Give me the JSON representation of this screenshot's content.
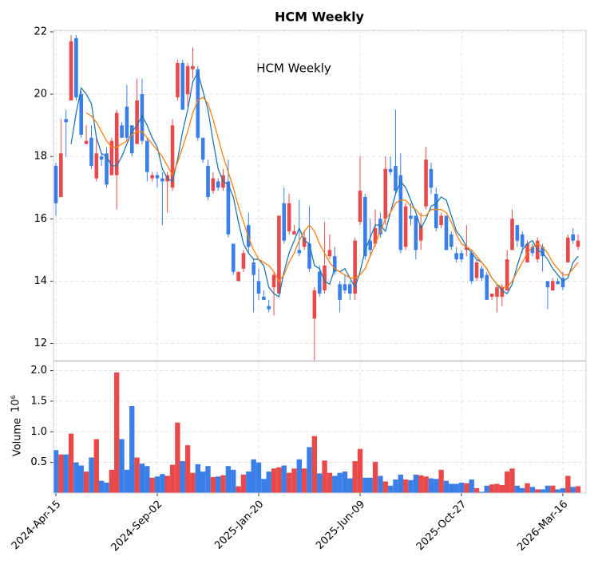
{
  "chart_data": {
    "type": "candlestick",
    "title": "HCM  Weekly",
    "annotation": "HCM  Weekly",
    "volume_ylabel": "Volume",
    "volume_scale_label": "10⁶",
    "up_color": "#3a7ee8",
    "down_color": "#e8494a",
    "grid": true,
    "categories": [
      "2024-Apr-15",
      null,
      null,
      null,
      null,
      null,
      null,
      null,
      null,
      null,
      null,
      null,
      null,
      null,
      null,
      null,
      null,
      null,
      null,
      null,
      "2024-Sep-02",
      null,
      null,
      null,
      null,
      null,
      null,
      null,
      null,
      null,
      null,
      null,
      null,
      null,
      null,
      null,
      null,
      null,
      null,
      null,
      "2025-Jan-20",
      null,
      null,
      null,
      null,
      null,
      null,
      null,
      null,
      null,
      null,
      null,
      null,
      null,
      null,
      null,
      null,
      null,
      null,
      null,
      "2025-Jun-09",
      null,
      null,
      null,
      null,
      null,
      null,
      null,
      null,
      null,
      null,
      null,
      null,
      null,
      null,
      null,
      null,
      null,
      null,
      null,
      "2025-Oct-27",
      null,
      null,
      null,
      null,
      null,
      null,
      null,
      null,
      null,
      null,
      null,
      null,
      null,
      null,
      null,
      null,
      null,
      null,
      null,
      "2026-Mar-16",
      null,
      null,
      null
    ],
    "open": [
      16.5,
      18.1,
      19.1,
      21.7,
      19.9,
      18.7,
      18.5,
      17.7,
      18.1,
      17.9,
      17.1,
      18.5,
      19.4,
      18.6,
      18.6,
      18.1,
      19.8,
      18.5,
      17.5,
      17.4,
      17.3,
      17.2,
      17.4,
      19.0,
      21.0,
      19.5,
      20.9,
      20.9,
      18.6,
      17.9,
      16.7,
      17.3,
      17.0,
      17.4,
      15.5,
      14.3,
      14.3,
      14.9,
      15.1,
      14.2,
      13.6,
      13.4,
      13.1,
      14.2,
      16.1,
      15.3,
      16.5,
      15.6,
      14.9,
      15.4,
      14.4,
      13.7,
      13.6,
      14.5,
      15.0,
      14.3,
      13.4,
      13.7,
      13.6,
      15.3,
      16.9,
      14.8,
      15.0,
      15.7,
      15.5,
      17.6,
      17.5,
      16.9,
      15.0,
      16.4,
      16.0,
      15.0,
      15.8,
      17.9,
      17.0,
      15.7,
      16.1,
      15.0,
      15.1,
      14.7,
      14.7,
      15.1,
      14.0,
      14.6,
      14.1,
      13.4,
      13.6,
      13.8,
      13.8,
      14.7,
      16.0,
      15.3,
      15.1,
      15.2,
      14.9,
      15.3,
      14.8,
      13.8,
      14.0,
      13.9,
      13.8,
      15.4,
      15.3,
      15.3
    ],
    "high": [
      17.8,
      19.2,
      19.5,
      21.9,
      21.9,
      20.1,
      19.0,
      19.0,
      18.6,
      18.1,
      18.3,
      18.6,
      19.5,
      19.1,
      20.3,
      19.0,
      20.5,
      20.5,
      18.6,
      17.5,
      17.5,
      17.5,
      17.5,
      19.2,
      21.1,
      21.1,
      21.0,
      21.5,
      20.9,
      18.6,
      17.9,
      17.5,
      17.3,
      17.6,
      17.9,
      15.2,
      14.3,
      15.0,
      16.2,
      14.7,
      14.4,
      13.7,
      13.4,
      14.3,
      16.1,
      17.0,
      16.8,
      15.8,
      16.6,
      15.6,
      16.4,
      13.8,
      14.5,
      15.9,
      15.5,
      15.1,
      14.0,
      14.2,
      14.0,
      15.4,
      18.0,
      16.8,
      16.0,
      16.3,
      16.2,
      18.0,
      18.0,
      19.5,
      18.1,
      16.5,
      16.5,
      16.1,
      16.2,
      18.3,
      17.8,
      17.0,
      16.2,
      16.1,
      15.6,
      15.1,
      15.0,
      15.8,
      15.0,
      14.7,
      14.5,
      14.3,
      13.6,
      13.9,
      13.9,
      15.0,
      16.3,
      15.8,
      15.6,
      15.3,
      15.2,
      15.4,
      15.2,
      14.0,
      14.1,
      14.1,
      14.3,
      15.5,
      15.7,
      15.5
    ],
    "low": [
      16.1,
      16.7,
      18.0,
      19.8,
      19.8,
      18.6,
      18.4,
      17.6,
      17.2,
      17.7,
      17.0,
      17.4,
      16.3,
      18.6,
      18.5,
      18.0,
      18.4,
      18.4,
      17.2,
      17.2,
      17.0,
      15.8,
      16.2,
      16.9,
      19.8,
      19.5,
      19.6,
      20.5,
      18.5,
      17.8,
      16.6,
      16.8,
      16.9,
      16.9,
      15.4,
      14.2,
      14.0,
      14.3,
      14.9,
      13.0,
      13.4,
      13.4,
      13.0,
      12.9,
      13.6,
      15.2,
      15.5,
      15.5,
      14.8,
      15.0,
      14.3,
      11.4,
      13.5,
      13.6,
      14.7,
      14.2,
      13.0,
      13.6,
      13.4,
      13.4,
      15.8,
      14.7,
      14.8,
      15.1,
      15.4,
      15.8,
      17.4,
      16.8,
      14.9,
      15.0,
      15.8,
      14.7,
      15.0,
      16.3,
      16.8,
      15.6,
      15.7,
      15.0,
      15.0,
      14.6,
      14.6,
      14.8,
      13.9,
      14.0,
      14.0,
      13.4,
      13.4,
      13.0,
      13.2,
      13.7,
      15.0,
      15.1,
      14.9,
      14.6,
      14.8,
      14.6,
      14.3,
      13.1,
      13.7,
      13.9,
      13.7,
      14.6,
      15.2,
      15.0
    ],
    "close": [
      17.7,
      16.7,
      19.2,
      19.8,
      21.8,
      20.0,
      18.4,
      18.6,
      17.3,
      18.0,
      18.1,
      17.4,
      17.4,
      19.0,
      19.6,
      19.0,
      18.4,
      20.0,
      18.5,
      17.3,
      17.4,
      17.3,
      17.2,
      17.0,
      19.9,
      21.0,
      20.0,
      20.8,
      20.8,
      18.6,
      17.7,
      16.9,
      17.2,
      17.0,
      17.2,
      15.2,
      14.0,
      14.4,
      15.8,
      14.6,
      14.0,
      13.5,
      13.2,
      13.8,
      13.6,
      16.5,
      15.6,
      15.5,
      15.0,
      15.1,
      15.2,
      12.8,
      14.3,
      13.7,
      14.8,
      14.8,
      13.9,
      13.9,
      13.9,
      13.6,
      15.9,
      16.7,
      15.3,
      15.2,
      16.0,
      16.0,
      17.6,
      17.7,
      17.4,
      15.1,
      16.1,
      16.1,
      15.3,
      16.4,
      17.6,
      16.8,
      15.8,
      16.1,
      15.5,
      14.9,
      14.9,
      15.0,
      14.9,
      14.1,
      14.4,
      14.2,
      13.5,
      13.5,
      13.5,
      13.7,
      15.0,
      15.8,
      15.5,
      14.6,
      15.1,
      14.7,
      15.1,
      14.0,
      13.7,
      14.0,
      14.1,
      14.6,
      15.5,
      15.1
    ],
    "volume": [
      0.7,
      0.63,
      0.63,
      0.97,
      0.5,
      0.45,
      0.35,
      0.58,
      0.88,
      0.2,
      0.17,
      0.38,
      1.97,
      0.88,
      0.38,
      1.42,
      0.58,
      0.48,
      0.44,
      0.25,
      0.27,
      0.31,
      0.28,
      0.46,
      1.15,
      0.52,
      0.78,
      0.33,
      0.47,
      0.35,
      0.44,
      0.26,
      0.27,
      0.29,
      0.44,
      0.38,
      0.11,
      0.3,
      0.35,
      0.55,
      0.5,
      0.23,
      0.35,
      0.4,
      0.42,
      0.45,
      0.33,
      0.4,
      0.55,
      0.4,
      0.75,
      0.93,
      0.32,
      0.53,
      0.33,
      0.28,
      0.33,
      0.35,
      0.24,
      0.52,
      0.72,
      0.25,
      0.25,
      0.51,
      0.28,
      0.19,
      0.12,
      0.22,
      0.3,
      0.22,
      0.21,
      0.3,
      0.29,
      0.27,
      0.24,
      0.23,
      0.38,
      0.2,
      0.15,
      0.15,
      0.17,
      0.16,
      0.22,
      0.08,
      0.02,
      0.12,
      0.14,
      0.15,
      0.13,
      0.35,
      0.4,
      0.12,
      0.08,
      0.16,
      0.1,
      0.06,
      0.06,
      0.12,
      0.12,
      0.06,
      0.08,
      0.28,
      0.1,
      0.11
    ],
    "ma_lines": [
      {
        "color": "#1f77b4",
        "values": [
          null,
          null,
          null,
          18.4,
          19.4,
          20.2,
          20.0,
          19.7,
          18.6,
          18.1,
          18.0,
          17.7,
          17.7,
          18.0,
          18.4,
          18.8,
          19.0,
          19.3,
          19.0,
          18.6,
          18.3,
          17.6,
          17.3,
          17.2,
          17.9,
          18.8,
          19.5,
          20.4,
          20.7,
          20.1,
          19.5,
          18.5,
          17.6,
          17.2,
          17.1,
          16.7,
          15.9,
          15.2,
          14.9,
          14.7,
          14.7,
          14.5,
          13.8,
          13.6,
          13.5,
          14.3,
          14.9,
          15.3,
          15.7,
          15.3,
          15.2,
          14.5,
          14.4,
          14.0,
          13.9,
          14.4,
          14.3,
          14.4,
          14.1,
          13.8,
          14.3,
          15.0,
          15.4,
          15.8,
          15.8,
          15.6,
          16.2,
          16.8,
          17.2,
          17.0,
          16.6,
          16.2,
          15.7,
          16.0,
          16.4,
          16.5,
          16.7,
          16.6,
          16.1,
          15.6,
          15.4,
          15.1,
          14.9,
          14.7,
          14.6,
          14.4,
          14.1,
          13.9,
          13.7,
          13.6,
          13.9,
          14.5,
          15.0,
          15.2,
          15.3,
          15.0,
          14.9,
          14.7,
          14.4,
          14.2,
          14.0,
          14.1,
          14.6,
          14.8
        ]
      },
      {
        "color": "#ff7f0e",
        "values": [
          null,
          null,
          null,
          null,
          null,
          null,
          19.4,
          19.3,
          19.1,
          18.8,
          18.5,
          18.3,
          18.3,
          18.4,
          18.5,
          18.7,
          18.8,
          18.8,
          18.6,
          18.4,
          18.2,
          18.0,
          17.7,
          17.4,
          17.8,
          18.3,
          18.8,
          19.4,
          19.8,
          19.9,
          19.7,
          19.2,
          18.6,
          18.0,
          17.5,
          17.0,
          16.4,
          15.9,
          15.4,
          15.0,
          14.7,
          14.6,
          14.5,
          14.3,
          14.0,
          14.2,
          14.6,
          14.9,
          15.3,
          15.6,
          15.8,
          15.6,
          15.2,
          14.9,
          14.6,
          14.4,
          14.3,
          14.2,
          14.1,
          14.1,
          14.2,
          14.4,
          14.8,
          15.2,
          15.6,
          16.0,
          16.2,
          16.5,
          16.6,
          16.6,
          16.4,
          16.3,
          16.1,
          16.1,
          16.3,
          16.3,
          16.3,
          16.2,
          15.9,
          15.5,
          15.2,
          15.1,
          15.0,
          14.8,
          14.6,
          14.4,
          14.1,
          13.9,
          13.8,
          13.8,
          14.0,
          14.3,
          14.6,
          14.9,
          15.1,
          15.2,
          15.1,
          14.9,
          14.6,
          14.4,
          14.2,
          14.2,
          14.4,
          14.6
        ]
      }
    ],
    "ylim": [
      11.45,
      22.05
    ],
    "yticks": [
      12,
      14,
      16,
      18,
      20,
      22
    ],
    "volume_ylim": [
      0,
      2.15
    ],
    "volume_yticks": [
      {
        "value": 0.5,
        "label": "0.5"
      },
      {
        "value": 1,
        "label": "1.0"
      },
      {
        "value": 1.5,
        "label": "1.5"
      },
      {
        "value": 2,
        "label": "2.0"
      }
    ]
  }
}
